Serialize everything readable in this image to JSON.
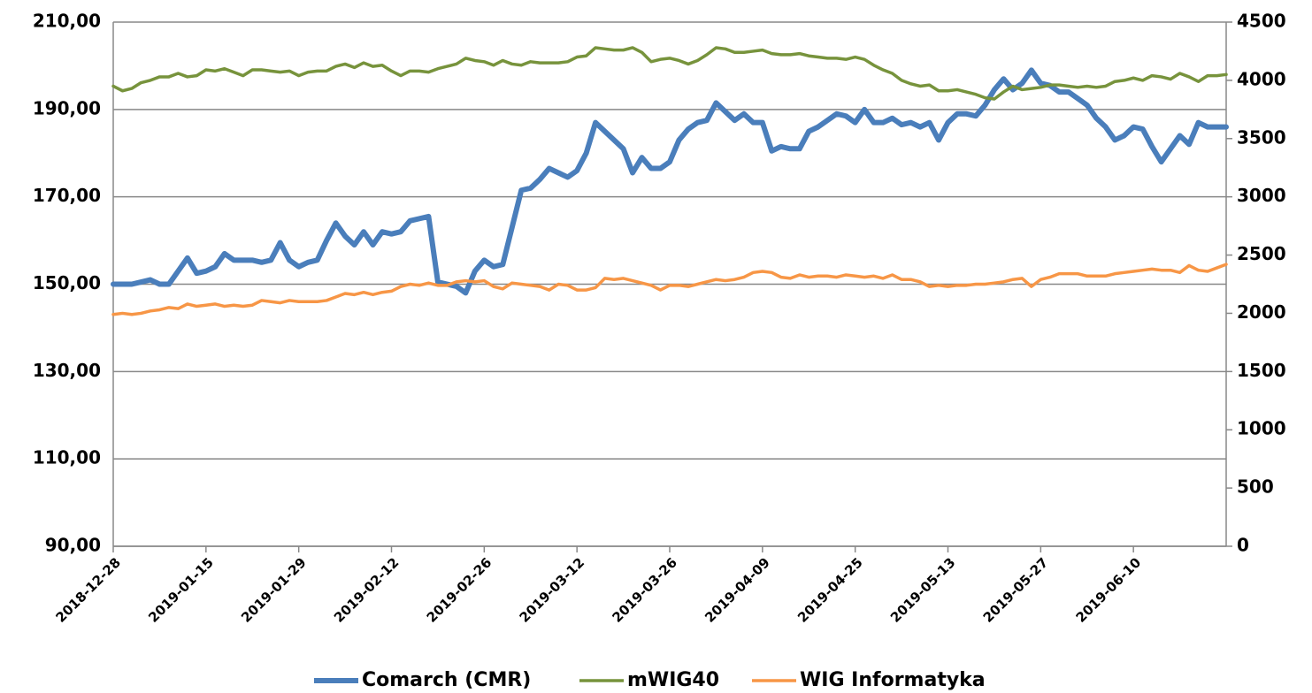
{
  "chart_data": {
    "type": "line",
    "categories": [
      "2018-12-28",
      null,
      null,
      null,
      null,
      null,
      null,
      null,
      null,
      null,
      "2019-01-15",
      null,
      null,
      null,
      null,
      null,
      null,
      null,
      null,
      null,
      "2019-01-29",
      null,
      null,
      null,
      null,
      null,
      null,
      null,
      null,
      null,
      "2019-02-12",
      null,
      null,
      null,
      null,
      null,
      null,
      null,
      null,
      null,
      "2019-02-26",
      null,
      null,
      null,
      null,
      null,
      null,
      null,
      null,
      null,
      "2019-03-12",
      null,
      null,
      null,
      null,
      null,
      null,
      null,
      null,
      null,
      "2019-03-26",
      null,
      null,
      null,
      null,
      null,
      null,
      null,
      null,
      null,
      "2019-04-09",
      null,
      null,
      null,
      null,
      null,
      null,
      null,
      null,
      null,
      "2019-04-25",
      null,
      null,
      null,
      null,
      null,
      null,
      null,
      null,
      null,
      "2019-05-13",
      null,
      null,
      null,
      null,
      null,
      null,
      null,
      null,
      null,
      "2019-05-27",
      null,
      null,
      null,
      null,
      null,
      null,
      null,
      null,
      null,
      "2019-06-10",
      null,
      null,
      null,
      null,
      null,
      null,
      null,
      null,
      null,
      null
    ],
    "series": [
      {
        "name": "Comarch (CMR)",
        "color": "#4a7ebb",
        "values": [
          150,
          150,
          150,
          150.5,
          151,
          150,
          150,
          153,
          156,
          152.5,
          153,
          154,
          157,
          155.5,
          155.5,
          155.5,
          155,
          155.5,
          159.5,
          155.5,
          154,
          155,
          155.5,
          160,
          164,
          161,
          159,
          162,
          159,
          162,
          161.5,
          162,
          164.5,
          165,
          165.5,
          150.5,
          150,
          149.5,
          148,
          153,
          155.5,
          154,
          154.5,
          163,
          171.5,
          172,
          174,
          176.5,
          175.5,
          174.5,
          176,
          180,
          187,
          185,
          183,
          181,
          175.5,
          179,
          176.5,
          176.5,
          178,
          183,
          185.5,
          187,
          187.5,
          191.5,
          189.5,
          187.5,
          189,
          187,
          187,
          180.5,
          181.5,
          181,
          181,
          185,
          186,
          187.5,
          189,
          188.5,
          187,
          190,
          187,
          187,
          188,
          186.5,
          187,
          186,
          187,
          183,
          187,
          189,
          189,
          188.5,
          191,
          194.5,
          197,
          194.5,
          196,
          199,
          196,
          195.5,
          194,
          194,
          192.5,
          191,
          188,
          186,
          183,
          184,
          186,
          185.5,
          181.5,
          178,
          181,
          184,
          182,
          187,
          186,
          186,
          186
        ]
      },
      {
        "name": "mWIG40",
        "color": "#77933c",
        "axis": "y2",
        "values": [
          3950,
          3910,
          3930,
          3980,
          4000,
          4030,
          4030,
          4060,
          4030,
          4040,
          4090,
          4080,
          4100,
          4070,
          4040,
          4090,
          4090,
          4080,
          4070,
          4080,
          4040,
          4070,
          4080,
          4080,
          4120,
          4140,
          4110,
          4150,
          4120,
          4130,
          4080,
          4040,
          4080,
          4080,
          4070,
          4100,
          4120,
          4140,
          4190,
          4170,
          4160,
          4130,
          4170,
          4140,
          4130,
          4160,
          4150,
          4150,
          4150,
          4160,
          4200,
          4210,
          4280,
          4270,
          4260,
          4260,
          4280,
          4240,
          4160,
          4180,
          4190,
          4170,
          4140,
          4170,
          4220,
          4280,
          4270,
          4240,
          4240,
          4250,
          4260,
          4230,
          4220,
          4220,
          4230,
          4210,
          4200,
          4190,
          4190,
          4180,
          4200,
          4180,
          4130,
          4090,
          4060,
          4000,
          3970,
          3950,
          3960,
          3910,
          3910,
          3920,
          3900,
          3880,
          3850,
          3840,
          3900,
          3950,
          3920,
          3930,
          3940,
          3960,
          3960,
          3950,
          3940,
          3950,
          3940,
          3950,
          3990,
          4000,
          4020,
          4000,
          4040,
          4030,
          4010,
          4060,
          4030,
          3990,
          4040,
          4040,
          4050
        ]
      },
      {
        "name": "WIG Informatyka",
        "color": "#f79646",
        "axis": "y2",
        "values": [
          1990,
          2000,
          1990,
          2000,
          2020,
          2030,
          2050,
          2040,
          2080,
          2060,
          2070,
          2080,
          2060,
          2070,
          2060,
          2070,
          2110,
          2100,
          2090,
          2110,
          2100,
          2100,
          2100,
          2110,
          2140,
          2170,
          2160,
          2180,
          2160,
          2180,
          2190,
          2230,
          2250,
          2240,
          2260,
          2240,
          2240,
          2270,
          2280,
          2270,
          2280,
          2230,
          2210,
          2260,
          2250,
          2240,
          2230,
          2200,
          2250,
          2240,
          2200,
          2200,
          2220,
          2300,
          2290,
          2300,
          2280,
          2260,
          2240,
          2200,
          2240,
          2240,
          2230,
          2250,
          2270,
          2290,
          2280,
          2290,
          2310,
          2350,
          2360,
          2350,
          2310,
          2300,
          2330,
          2310,
          2320,
          2320,
          2310,
          2330,
          2320,
          2310,
          2320,
          2300,
          2330,
          2290,
          2290,
          2270,
          2230,
          2240,
          2230,
          2240,
          2240,
          2250,
          2250,
          2260,
          2270,
          2290,
          2300,
          2230,
          2290,
          2310,
          2340,
          2340,
          2340,
          2320,
          2320,
          2320,
          2340,
          2350,
          2360,
          2370,
          2380,
          2370,
          2370,
          2350,
          2410,
          2370,
          2360,
          2390,
          2420
        ]
      }
    ],
    "ylim": [
      90,
      210
    ],
    "yticks": [
      {
        "value": 90,
        "label": "90,00"
      },
      {
        "value": 110,
        "label": "110,00"
      },
      {
        "value": 130,
        "label": "130,00"
      },
      {
        "value": 150,
        "label": "150,00"
      },
      {
        "value": 170,
        "label": "170,00"
      },
      {
        "value": 190,
        "label": "190,00"
      },
      {
        "value": 210,
        "label": "210,00"
      }
    ],
    "y2lim": [
      0,
      4500
    ],
    "y2ticks": [
      0,
      500,
      1000,
      1500,
      2000,
      2500,
      3000,
      3500,
      4000,
      4500
    ],
    "grid": true,
    "legend": "bottom"
  }
}
